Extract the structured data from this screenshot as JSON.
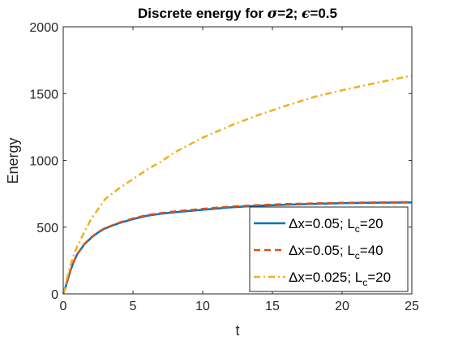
{
  "chart_data": {
    "type": "line",
    "title": {
      "prefix": "Discrete energy for ",
      "sym1": "σ",
      "mid": "=2; ",
      "sym2": "ϵ",
      "suffix": "=0.5"
    },
    "xlabel": "t",
    "ylabel": "Energy",
    "xlim": [
      0,
      25
    ],
    "ylim": [
      0,
      2000
    ],
    "xticks": [
      0,
      5,
      10,
      15,
      20,
      25
    ],
    "yticks": [
      0,
      500,
      1000,
      1500,
      2000
    ],
    "grid": false,
    "legend_position": "bottom-right",
    "series": [
      {
        "legend": {
          "pre": "Δx=0.05; L",
          "sub": "c",
          "post": "=20"
        },
        "color": "#0072BD",
        "style": "solid",
        "width": 2.5,
        "x": [
          0,
          0.25,
          0.5,
          0.75,
          1,
          1.5,
          2,
          2.5,
          3,
          4,
          5,
          6,
          7,
          8,
          10,
          12,
          14,
          16,
          18,
          20,
          22,
          25
        ],
        "y": [
          0,
          80,
          170,
          240,
          295,
          370,
          420,
          460,
          490,
          530,
          560,
          585,
          600,
          612,
          630,
          648,
          660,
          668,
          674,
          679,
          682,
          685
        ]
      },
      {
        "legend": {
          "pre": "Δx=0.05; L",
          "sub": "c",
          "post": "=40"
        },
        "color": "#D95319",
        "style": "dashed",
        "width": 2.5,
        "x": [
          0,
          0.25,
          0.5,
          0.75,
          1,
          1.5,
          2,
          2.5,
          3,
          4,
          5,
          6,
          7,
          8,
          10,
          12,
          14,
          16,
          18,
          20,
          22,
          25
        ],
        "y": [
          0,
          82,
          172,
          242,
          297,
          372,
          423,
          463,
          493,
          533,
          565,
          590,
          605,
          618,
          637,
          654,
          665,
          673,
          678,
          682,
          685,
          688
        ]
      },
      {
        "legend": {
          "pre": "Δx=0.025; L",
          "sub": "c",
          "post": "=20"
        },
        "color": "#EDB120",
        "style": "dashdot",
        "width": 2.5,
        "x": [
          0,
          0.25,
          0.5,
          0.75,
          1,
          1.5,
          2,
          3,
          4,
          5,
          6,
          7,
          8,
          10,
          12,
          14,
          16,
          18,
          20,
          22,
          25
        ],
        "y": [
          0,
          110,
          210,
          290,
          355,
          460,
          560,
          710,
          790,
          860,
          930,
          990,
          1060,
          1170,
          1260,
          1340,
          1410,
          1475,
          1525,
          1570,
          1635
        ]
      }
    ]
  }
}
